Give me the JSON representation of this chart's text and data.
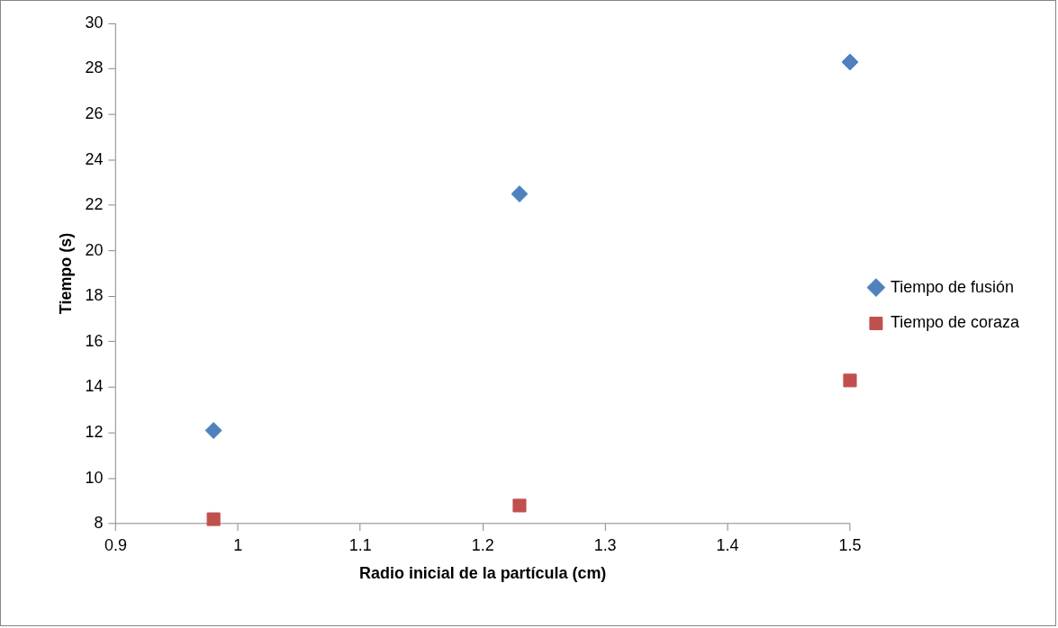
{
  "chart_data": {
    "type": "scatter",
    "xlabel": "Radio inicial de la partícula (cm)",
    "ylabel": "Tiempo (s)",
    "xlim": [
      0.9,
      1.5
    ],
    "xticks": [
      0.9,
      1,
      1.1,
      1.2,
      1.3,
      1.4,
      1.5
    ],
    "ylim": [
      8,
      30
    ],
    "yticks": [
      8,
      10,
      12,
      14,
      16,
      18,
      20,
      22,
      24,
      26,
      28,
      30
    ],
    "grid": false,
    "legend": "right",
    "series": [
      {
        "name": "Tiempo de fusión",
        "color": "#4f81bd",
        "marker": "diamond",
        "x": [
          0.98,
          1.23,
          1.5
        ],
        "values": [
          12.1,
          22.5,
          28.3
        ]
      },
      {
        "name": "Tiempo de coraza",
        "color": "#c0504d",
        "marker": "square",
        "x": [
          0.98,
          1.23,
          1.5
        ],
        "values": [
          8.2,
          8.8,
          14.3
        ]
      }
    ]
  }
}
